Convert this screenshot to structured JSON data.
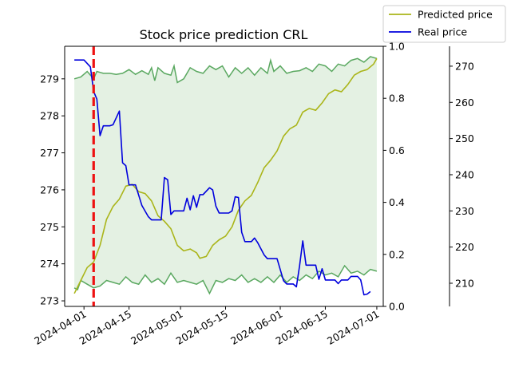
{
  "chart_data": {
    "type": "line",
    "title": "Stock price prediction CRL",
    "xlabel": "",
    "ylabel": "",
    "x_tick_labels": [
      "2024-04-01",
      "2024-04-15",
      "2024-05-01",
      "2024-05-15",
      "2024-06-01",
      "2024-06-15",
      "2024-07-01"
    ],
    "left_axis": {
      "ylim": [
        272.85,
        279.88
      ],
      "ticks": [
        273,
        274,
        275,
        276,
        277,
        278,
        279
      ]
    },
    "middle_axis": {
      "ylim": [
        0.0,
        1.0
      ],
      "ticks": [
        "0.0",
        "0.2",
        "0.4",
        "0.6",
        "0.8",
        "1.0"
      ]
    },
    "right_axis": {
      "ylim": [
        203.6,
        275.5
      ],
      "ticks": [
        210,
        220,
        230,
        240,
        250,
        260,
        270
      ]
    },
    "x_range": [
      "2024-03-26",
      "2024-07-03"
    ],
    "prediction_start": "2024-04-04",
    "band": {
      "color": "#5aa860",
      "fill": "#e4f1e3",
      "upper": [
        [
          "2024-03-29",
          279.0
        ],
        [
          "2024-03-31",
          279.05
        ],
        [
          "2024-04-02",
          279.2
        ],
        [
          "2024-04-04",
          279.0
        ],
        [
          "2024-04-05",
          279.2
        ],
        [
          "2024-04-07",
          279.15
        ],
        [
          "2024-04-09",
          279.15
        ],
        [
          "2024-04-11",
          279.12
        ],
        [
          "2024-04-13",
          279.15
        ],
        [
          "2024-04-15",
          279.25
        ],
        [
          "2024-04-17",
          279.12
        ],
        [
          "2024-04-19",
          279.22
        ],
        [
          "2024-04-21",
          279.12
        ],
        [
          "2024-04-22",
          279.3
        ],
        [
          "2024-04-23",
          278.95
        ],
        [
          "2024-04-24",
          279.3
        ],
        [
          "2024-04-26",
          279.15
        ],
        [
          "2024-04-28",
          279.1
        ],
        [
          "2024-04-29",
          279.35
        ],
        [
          "2024-04-30",
          278.9
        ],
        [
          "2024-05-02",
          279.0
        ],
        [
          "2024-05-04",
          279.3
        ],
        [
          "2024-05-06",
          279.2
        ],
        [
          "2024-05-08",
          279.15
        ],
        [
          "2024-05-10",
          279.35
        ],
        [
          "2024-05-12",
          279.25
        ],
        [
          "2024-05-14",
          279.35
        ],
        [
          "2024-05-16",
          279.05
        ],
        [
          "2024-05-18",
          279.3
        ],
        [
          "2024-05-20",
          279.15
        ],
        [
          "2024-05-22",
          279.3
        ],
        [
          "2024-05-24",
          279.1
        ],
        [
          "2024-05-26",
          279.3
        ],
        [
          "2024-05-28",
          279.15
        ],
        [
          "2024-05-29",
          279.5
        ],
        [
          "2024-05-30",
          279.2
        ],
        [
          "2024-06-01",
          279.35
        ],
        [
          "2024-06-03",
          279.15
        ],
        [
          "2024-06-05",
          279.2
        ],
        [
          "2024-06-07",
          279.22
        ],
        [
          "2024-06-09",
          279.3
        ],
        [
          "2024-06-11",
          279.2
        ],
        [
          "2024-06-13",
          279.4
        ],
        [
          "2024-06-15",
          279.35
        ],
        [
          "2024-06-17",
          279.2
        ],
        [
          "2024-06-19",
          279.4
        ],
        [
          "2024-06-21",
          279.35
        ],
        [
          "2024-06-23",
          279.5
        ],
        [
          "2024-06-25",
          279.55
        ],
        [
          "2024-06-27",
          279.45
        ],
        [
          "2024-06-29",
          279.6
        ],
        [
          "2024-07-01",
          279.55
        ]
      ],
      "lower": [
        [
          "2024-03-29",
          273.35
        ],
        [
          "2024-03-30",
          273.3
        ],
        [
          "2024-03-31",
          273.55
        ],
        [
          "2024-04-02",
          273.45
        ],
        [
          "2024-04-04",
          273.35
        ],
        [
          "2024-04-06",
          273.4
        ],
        [
          "2024-04-08",
          273.55
        ],
        [
          "2024-04-10",
          273.5
        ],
        [
          "2024-04-12",
          273.45
        ],
        [
          "2024-04-14",
          273.65
        ],
        [
          "2024-04-16",
          273.5
        ],
        [
          "2024-04-18",
          273.45
        ],
        [
          "2024-04-20",
          273.7
        ],
        [
          "2024-04-22",
          273.5
        ],
        [
          "2024-04-24",
          273.6
        ],
        [
          "2024-04-26",
          273.45
        ],
        [
          "2024-04-28",
          273.75
        ],
        [
          "2024-04-30",
          273.5
        ],
        [
          "2024-05-02",
          273.55
        ],
        [
          "2024-05-04",
          273.5
        ],
        [
          "2024-05-06",
          273.45
        ],
        [
          "2024-05-08",
          273.55
        ],
        [
          "2024-05-10",
          273.2
        ],
        [
          "2024-05-12",
          273.55
        ],
        [
          "2024-05-14",
          273.5
        ],
        [
          "2024-05-16",
          273.6
        ],
        [
          "2024-05-18",
          273.55
        ],
        [
          "2024-05-20",
          273.7
        ],
        [
          "2024-05-22",
          273.5
        ],
        [
          "2024-05-24",
          273.6
        ],
        [
          "2024-05-26",
          273.5
        ],
        [
          "2024-05-28",
          273.65
        ],
        [
          "2024-05-30",
          273.5
        ],
        [
          "2024-06-01",
          273.7
        ],
        [
          "2024-06-03",
          273.5
        ],
        [
          "2024-06-05",
          273.65
        ],
        [
          "2024-06-07",
          273.55
        ],
        [
          "2024-06-09",
          273.7
        ],
        [
          "2024-06-11",
          273.6
        ],
        [
          "2024-06-13",
          273.8
        ],
        [
          "2024-06-15",
          273.7
        ],
        [
          "2024-06-17",
          273.75
        ],
        [
          "2024-06-19",
          273.65
        ],
        [
          "2024-06-21",
          273.95
        ],
        [
          "2024-06-23",
          273.75
        ],
        [
          "2024-06-25",
          273.8
        ],
        [
          "2024-06-27",
          273.7
        ],
        [
          "2024-06-29",
          273.85
        ],
        [
          "2024-07-01",
          273.8
        ]
      ]
    },
    "series": [
      {
        "name": "Predicted price",
        "axis": "left",
        "color": "#aab51a",
        "points": [
          [
            "2024-03-29",
            273.2
          ],
          [
            "2024-03-31",
            273.55
          ],
          [
            "2024-04-02",
            273.9
          ],
          [
            "2024-04-04",
            274.05
          ],
          [
            "2024-04-06",
            274.5
          ],
          [
            "2024-04-08",
            275.2
          ],
          [
            "2024-04-10",
            275.55
          ],
          [
            "2024-04-12",
            275.75
          ],
          [
            "2024-04-14",
            276.1
          ],
          [
            "2024-04-16",
            276.15
          ],
          [
            "2024-04-18",
            275.95
          ],
          [
            "2024-04-20",
            275.9
          ],
          [
            "2024-04-22",
            275.7
          ],
          [
            "2024-04-24",
            275.3
          ],
          [
            "2024-04-26",
            275.15
          ],
          [
            "2024-04-28",
            274.95
          ],
          [
            "2024-04-30",
            274.5
          ],
          [
            "2024-05-02",
            274.35
          ],
          [
            "2024-05-04",
            274.4
          ],
          [
            "2024-05-06",
            274.3
          ],
          [
            "2024-05-07",
            274.15
          ],
          [
            "2024-05-09",
            274.2
          ],
          [
            "2024-05-11",
            274.5
          ],
          [
            "2024-05-13",
            274.65
          ],
          [
            "2024-05-15",
            274.75
          ],
          [
            "2024-05-17",
            275.0
          ],
          [
            "2024-05-19",
            275.45
          ],
          [
            "2024-05-21",
            275.7
          ],
          [
            "2024-05-23",
            275.85
          ],
          [
            "2024-05-25",
            276.2
          ],
          [
            "2024-05-27",
            276.6
          ],
          [
            "2024-05-29",
            276.8
          ],
          [
            "2024-05-31",
            277.05
          ],
          [
            "2024-06-02",
            277.45
          ],
          [
            "2024-06-04",
            277.65
          ],
          [
            "2024-06-06",
            277.75
          ],
          [
            "2024-06-08",
            278.1
          ],
          [
            "2024-06-10",
            278.2
          ],
          [
            "2024-06-12",
            278.15
          ],
          [
            "2024-06-14",
            278.35
          ],
          [
            "2024-06-16",
            278.6
          ],
          [
            "2024-06-18",
            278.7
          ],
          [
            "2024-06-20",
            278.65
          ],
          [
            "2024-06-22",
            278.85
          ],
          [
            "2024-06-24",
            279.1
          ],
          [
            "2024-06-26",
            279.2
          ],
          [
            "2024-06-28",
            279.25
          ],
          [
            "2024-06-30",
            279.4
          ],
          [
            "2024-07-01",
            279.55
          ]
        ]
      },
      {
        "name": "Real price",
        "axis": "right",
        "color": "#0000dd",
        "points": [
          [
            "2024-03-29",
            271.7
          ],
          [
            "2024-04-01",
            271.7
          ],
          [
            "2024-04-03",
            269.8
          ],
          [
            "2024-04-04",
            263.0
          ],
          [
            "2024-04-05",
            260.9
          ],
          [
            "2024-04-06",
            250.8
          ],
          [
            "2024-04-07",
            253.5
          ],
          [
            "2024-04-09",
            253.5
          ],
          [
            "2024-04-10",
            253.8
          ],
          [
            "2024-04-12",
            257.6
          ],
          [
            "2024-04-13",
            243.3
          ],
          [
            "2024-04-14",
            242.5
          ],
          [
            "2024-04-15",
            237.2
          ],
          [
            "2024-04-17",
            237.2
          ],
          [
            "2024-04-19",
            231.5
          ],
          [
            "2024-04-21",
            228.4
          ],
          [
            "2024-04-22",
            227.5
          ],
          [
            "2024-04-25",
            227.5
          ],
          [
            "2024-04-26",
            239.2
          ],
          [
            "2024-04-27",
            238.6
          ],
          [
            "2024-04-28",
            229.0
          ],
          [
            "2024-04-29",
            230.0
          ],
          [
            "2024-05-02",
            230.0
          ],
          [
            "2024-05-03",
            233.5
          ],
          [
            "2024-05-04",
            230.3
          ],
          [
            "2024-05-05",
            234.2
          ],
          [
            "2024-05-06",
            231.0
          ],
          [
            "2024-05-07",
            234.5
          ],
          [
            "2024-05-08",
            234.5
          ],
          [
            "2024-05-10",
            236.4
          ],
          [
            "2024-05-11",
            235.8
          ],
          [
            "2024-05-12",
            231.3
          ],
          [
            "2024-05-13",
            229.4
          ],
          [
            "2024-05-16",
            229.4
          ],
          [
            "2024-05-17",
            230.0
          ],
          [
            "2024-05-18",
            233.9
          ],
          [
            "2024-05-19",
            233.7
          ],
          [
            "2024-05-20",
            224.1
          ],
          [
            "2024-05-21",
            221.5
          ],
          [
            "2024-05-23",
            221.5
          ],
          [
            "2024-05-24",
            222.5
          ],
          [
            "2024-05-25",
            221.2
          ],
          [
            "2024-05-27",
            217.8
          ],
          [
            "2024-05-28",
            216.8
          ],
          [
            "2024-05-31",
            216.8
          ],
          [
            "2024-06-01",
            213.8
          ],
          [
            "2024-06-02",
            210.7
          ],
          [
            "2024-06-03",
            209.8
          ],
          [
            "2024-06-05",
            209.8
          ],
          [
            "2024-06-06",
            209.0
          ],
          [
            "2024-06-07",
            214.8
          ],
          [
            "2024-06-08",
            221.7
          ],
          [
            "2024-06-09",
            215.0
          ],
          [
            "2024-06-12",
            215.0
          ],
          [
            "2024-06-13",
            211.1
          ],
          [
            "2024-06-14",
            214.0
          ],
          [
            "2024-06-15",
            210.9
          ],
          [
            "2024-06-16",
            210.9
          ],
          [
            "2024-06-18",
            210.9
          ],
          [
            "2024-06-19",
            209.9
          ],
          [
            "2024-06-20",
            210.9
          ],
          [
            "2024-06-22",
            210.9
          ],
          [
            "2024-06-23",
            211.9
          ],
          [
            "2024-06-25",
            211.9
          ],
          [
            "2024-06-26",
            210.9
          ],
          [
            "2024-06-27",
            206.8
          ],
          [
            "2024-06-28",
            207.0
          ],
          [
            "2024-06-29",
            207.7
          ]
        ]
      }
    ],
    "legend": {
      "placement": "top-right",
      "entries": [
        "Predicted price",
        "Real price"
      ]
    },
    "grid": false
  }
}
